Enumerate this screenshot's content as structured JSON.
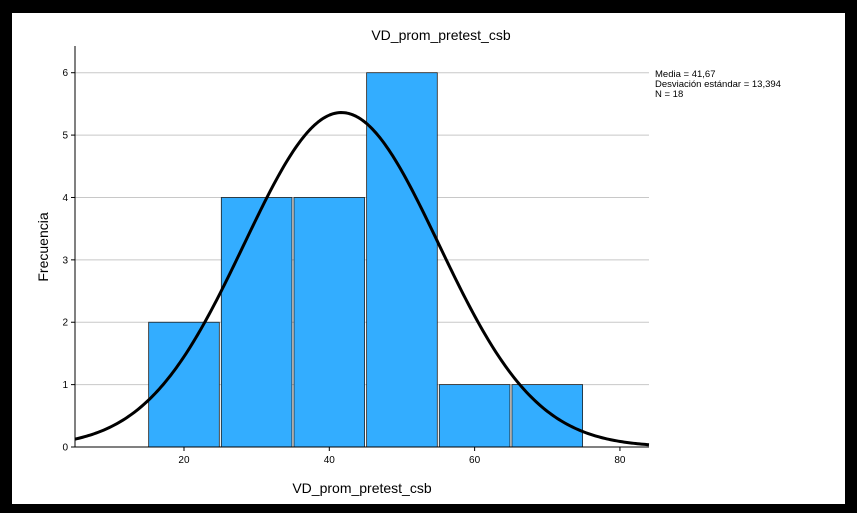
{
  "chart_data": {
    "type": "bar",
    "title": "VD_prom_pretest_csb",
    "xlabel": "VD_prom_pretest_csb",
    "ylabel": "Frecuencia",
    "xlim": [
      5,
      84
    ],
    "ylim": [
      0,
      6.3
    ],
    "x_ticks": [
      20,
      40,
      60,
      80
    ],
    "x_tick_labels": [
      "20",
      "40",
      "60",
      "80"
    ],
    "y_ticks": [
      0,
      1,
      2,
      3,
      4,
      5,
      6
    ],
    "y_tick_labels": [
      "0",
      "1",
      "2",
      "3",
      "4",
      "5",
      "6"
    ],
    "grid": "horizontal",
    "bins": [
      {
        "x0": 15,
        "x1": 25,
        "value": 2
      },
      {
        "x0": 25,
        "x1": 35,
        "value": 4
      },
      {
        "x0": 35,
        "x1": 45,
        "value": 4
      },
      {
        "x0": 45,
        "x1": 55,
        "value": 6
      },
      {
        "x0": 55,
        "x1": 65,
        "value": 1
      },
      {
        "x0": 65,
        "x1": 75,
        "value": 1
      }
    ],
    "normal_curve": {
      "mean": 41.67,
      "sd": 13.394,
      "n": 18,
      "bin_width": 10
    },
    "bar_color": "#33adff",
    "bar_edge_color": "#1f1f1f",
    "curve_color": "#000000",
    "stats": {
      "mean_label": "Media = 41,67",
      "sd_label": "Desviación estándar = 13,394",
      "n_label": "N = 18"
    }
  }
}
